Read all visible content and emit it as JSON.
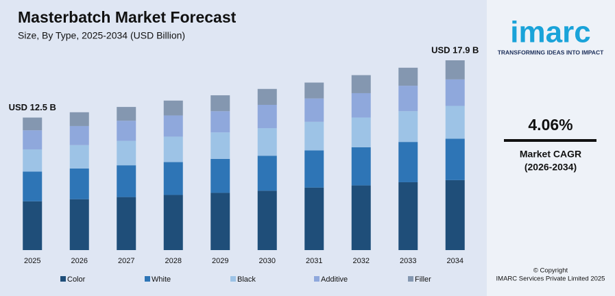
{
  "chart_data": {
    "type": "stacked-bar",
    "title": "Masterbatch Market Forecast",
    "subtitle": "Size, By Type, 2025-2034 (USD Billion)",
    "categories": [
      "2025",
      "2026",
      "2027",
      "2028",
      "2029",
      "2030",
      "2031",
      "2032",
      "2033",
      "2034"
    ],
    "series": [
      {
        "name": "Color",
        "color": "#1f4e79",
        "values": [
          4.6,
          4.8,
          5.0,
          5.2,
          5.4,
          5.6,
          5.9,
          6.1,
          6.4,
          6.6
        ]
      },
      {
        "name": "White",
        "color": "#2e75b6",
        "values": [
          2.8,
          2.9,
          3.0,
          3.1,
          3.2,
          3.3,
          3.5,
          3.6,
          3.8,
          3.9
        ]
      },
      {
        "name": "Black",
        "color": "#9dc3e6",
        "values": [
          2.1,
          2.2,
          2.3,
          2.4,
          2.5,
          2.6,
          2.7,
          2.8,
          2.9,
          3.1
        ]
      },
      {
        "name": "Additive",
        "color": "#8fa8dc",
        "values": [
          1.8,
          1.8,
          1.9,
          2.0,
          2.0,
          2.2,
          2.2,
          2.3,
          2.4,
          2.5
        ]
      },
      {
        "name": "Filler",
        "color": "#8497b0",
        "values": [
          1.2,
          1.3,
          1.3,
          1.4,
          1.5,
          1.5,
          1.5,
          1.7,
          1.7,
          1.8
        ]
      }
    ],
    "annotations": [
      {
        "category": "2025",
        "value": 12.5,
        "label": "USD 12.5 B"
      },
      {
        "category": "2034",
        "value": 17.9,
        "label": "USD 17.9 B"
      }
    ],
    "legend": "bottom"
  },
  "sidebar": {
    "logo": "imarc",
    "tagline": "TRANSFORMING IDEAS INTO IMPACT",
    "cagr": "4.06%",
    "cagr_label": "Market CAGR",
    "cagr_period": "(2026-2034)",
    "copyright": "© Copyright",
    "company": "IMARC Services Private Limited 2025"
  }
}
